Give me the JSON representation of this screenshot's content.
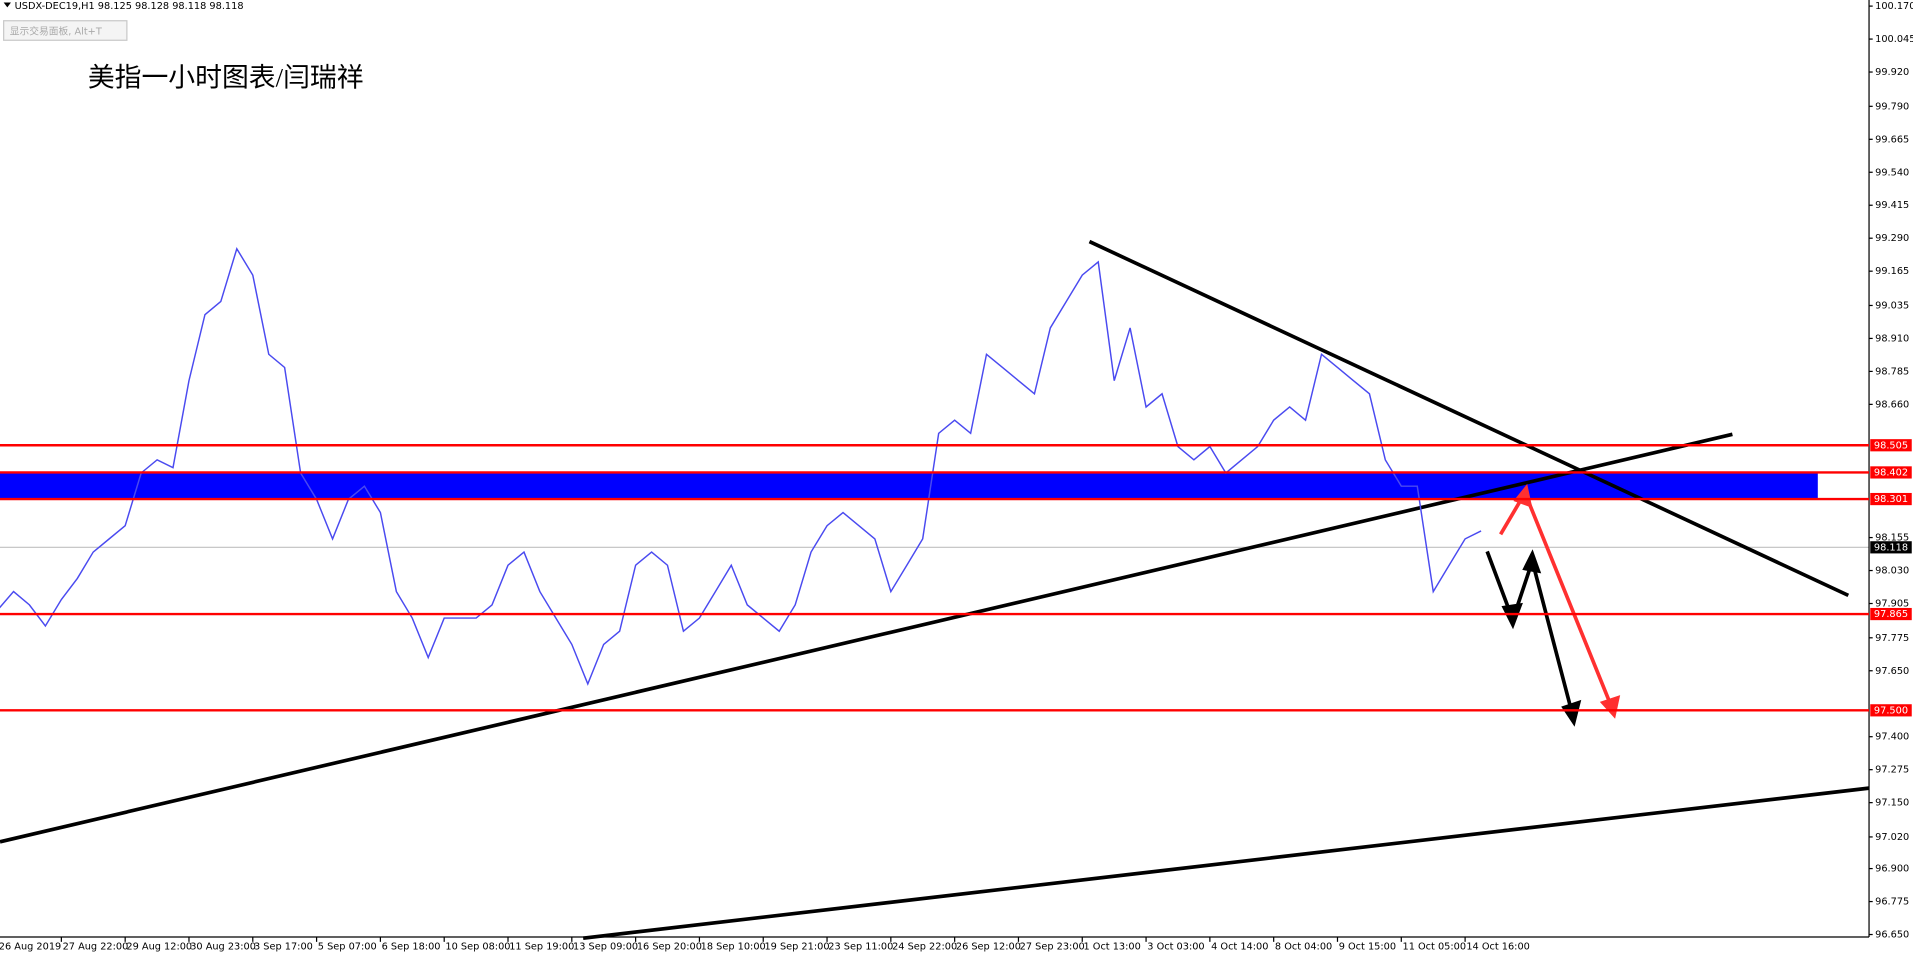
{
  "chart_data": {
    "type": "line",
    "header": "USDX-DEC19,H1  98.125 98.128 98.118 98.118",
    "button": "显示交易面板, Alt+T",
    "title": "美指一小时图表/闫瑞祥",
    "categories": [
      "26 Aug 2019",
      null,
      null,
      null,
      "27 Aug 22:00",
      null,
      null,
      null,
      "29 Aug 12:00",
      null,
      null,
      null,
      "30 Aug 23:00",
      null,
      null,
      null,
      "3 Sep 17:00",
      null,
      null,
      null,
      "5 Sep 07:00",
      null,
      null,
      null,
      "6 Sep 18:00",
      null,
      null,
      null,
      "10 Sep 08:00",
      null,
      null,
      null,
      "11 Sep 19:00",
      null,
      null,
      null,
      "13 Sep 09:00",
      null,
      null,
      null,
      "16 Sep 20:00",
      null,
      null,
      null,
      "18 Sep 10:00",
      null,
      null,
      null,
      "19 Sep 21:00",
      null,
      null,
      null,
      "23 Sep 11:00",
      null,
      null,
      null,
      "24 Sep 22:00",
      null,
      null,
      null,
      "26 Sep 12:00",
      null,
      null,
      null,
      "27 Sep 23:00",
      null,
      null,
      null,
      "1 Oct 13:00",
      null,
      null,
      null,
      "3 Oct 03:00",
      null,
      null,
      null,
      "4 Oct 14:00",
      null,
      null,
      null,
      "8 Oct 04:00",
      null,
      null,
      null,
      "9 Oct 15:00",
      null,
      null,
      null,
      "11 Oct 05:00",
      null,
      null,
      null,
      "14 Oct 16:00",
      null
    ],
    "series": [
      {
        "name": "USDX-DEC19,H1",
        "color": "#4a4af0",
        "values": [
          97.88,
          97.95,
          97.9,
          97.82,
          97.92,
          98.0,
          98.1,
          98.15,
          98.2,
          98.4,
          98.45,
          98.42,
          98.75,
          99.0,
          99.05,
          99.25,
          99.15,
          98.85,
          98.8,
          98.4,
          98.3,
          98.15,
          98.3,
          98.35,
          98.25,
          97.95,
          97.85,
          97.7,
          97.85,
          97.85,
          97.85,
          97.9,
          98.05,
          98.1,
          97.95,
          97.85,
          97.75,
          97.6,
          97.75,
          97.8,
          98.05,
          98.1,
          98.05,
          97.8,
          97.85,
          97.95,
          98.05,
          97.9,
          97.85,
          97.8,
          97.9,
          98.1,
          98.2,
          98.25,
          98.2,
          98.15,
          97.95,
          98.05,
          98.15,
          98.55,
          98.6,
          98.55,
          98.85,
          98.8,
          98.75,
          98.7,
          98.95,
          99.05,
          99.15,
          99.2,
          98.75,
          98.95,
          98.65,
          98.7,
          98.5,
          98.45,
          98.5,
          98.4,
          98.45,
          98.5,
          98.6,
          98.65,
          98.6,
          98.85,
          98.8,
          98.75,
          98.7,
          98.45,
          98.35,
          98.35,
          97.95,
          98.05,
          98.15,
          98.18
        ]
      }
    ],
    "ylim": [
      96.65,
      100.17
    ],
    "yticks": [
      {
        "value": 100.17,
        "label": "100.170"
      },
      100.045,
      {
        "value": 99.92,
        "label": "99.920"
      },
      {
        "value": 99.79,
        "label": "99.790"
      },
      99.665,
      {
        "value": 99.54,
        "label": "99.540"
      },
      99.415,
      {
        "value": 99.29,
        "label": "99.290"
      },
      99.165,
      99.035,
      {
        "value": 98.91,
        "label": "98.910"
      },
      98.785,
      {
        "value": 98.66,
        "label": "98.660"
      },
      98.155,
      {
        "value": 98.03,
        "label": "98.030"
      },
      97.905,
      97.775,
      {
        "value": 97.65,
        "label": "97.650"
      },
      {
        "value": 97.4,
        "label": "97.400"
      },
      97.275,
      {
        "value": 97.15,
        "label": "97.150"
      },
      {
        "value": 97.02,
        "label": "97.020"
      },
      {
        "value": 96.9,
        "label": "96.900"
      },
      96.775,
      {
        "value": 96.65,
        "label": "96.650"
      }
    ],
    "levels": [
      {
        "value": 98.505,
        "label": "98.505",
        "color": "#ff0000"
      },
      {
        "value": 98.402,
        "label": "98.402",
        "color": "#ff0000"
      },
      {
        "value": 98.301,
        "label": "98.301",
        "color": "#ff0000"
      },
      {
        "value": 97.865,
        "label": "97.865",
        "color": "#ff0000"
      },
      {
        "value": 97.5,
        "label": "97.500",
        "color": "#ff0000"
      }
    ],
    "current": {
      "value": 98.118,
      "label": "98.118",
      "color": "#000000"
    },
    "zone": {
      "low": 98.301,
      "high": 98.402,
      "color": "#0000ff"
    }
  }
}
